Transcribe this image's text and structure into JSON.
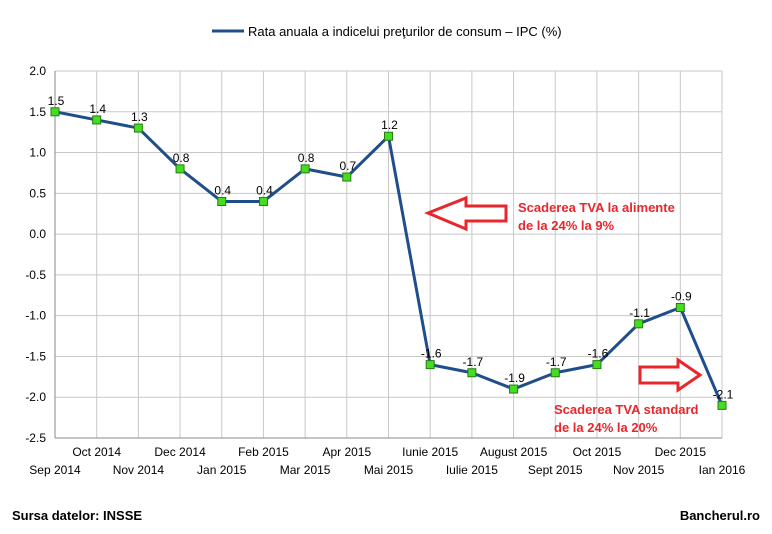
{
  "chart_data": {
    "type": "line",
    "legend": {
      "label": "Rata anuala a indicelui preţurilor de consum – IPC (%)",
      "placement": "top",
      "color": "#1f4e8a"
    },
    "categories": [
      "Sep 2014",
      "Oct 2014",
      "Nov 2014",
      "Dec 2014",
      "Jan 2015",
      "Feb 2015",
      "Mar 2015",
      "Apr 2015",
      "Mai 2015",
      "Iunie 2015",
      "Iulie 2015",
      "August 2015",
      "Sept 2015",
      "Oct 2015",
      "Nov 2015",
      "Dec 2015",
      "Ian 2016"
    ],
    "series": [
      {
        "name": "Rata anuala a indicelui preţurilor de consum – IPC (%)",
        "values": [
          1.5,
          1.4,
          1.3,
          0.8,
          0.4,
          0.4,
          0.8,
          0.7,
          1.2,
          -1.6,
          -1.7,
          -1.9,
          -1.7,
          -1.6,
          -1.1,
          -0.9,
          -2.1
        ]
      }
    ],
    "ylim": [
      -2.5,
      2.0
    ],
    "yticks": [
      2.0,
      1.5,
      1.0,
      0.5,
      0.0,
      -0.5,
      -1.0,
      -1.5,
      -2.0,
      -2.5
    ],
    "grid": true,
    "line_color": "#1f4e8a",
    "marker_color": "#44dd22",
    "annotation_color": "#e8262b",
    "annotations": [
      {
        "line1": "Scaderea TVA la alimente",
        "line2": "de la 24% la 9%"
      },
      {
        "line1": "Scaderea TVA standard",
        "line2": "de la 24% la 20%"
      }
    ]
  },
  "footer": {
    "source": "Sursa datelor: INSSE",
    "brand": "Bancherul.ro"
  }
}
